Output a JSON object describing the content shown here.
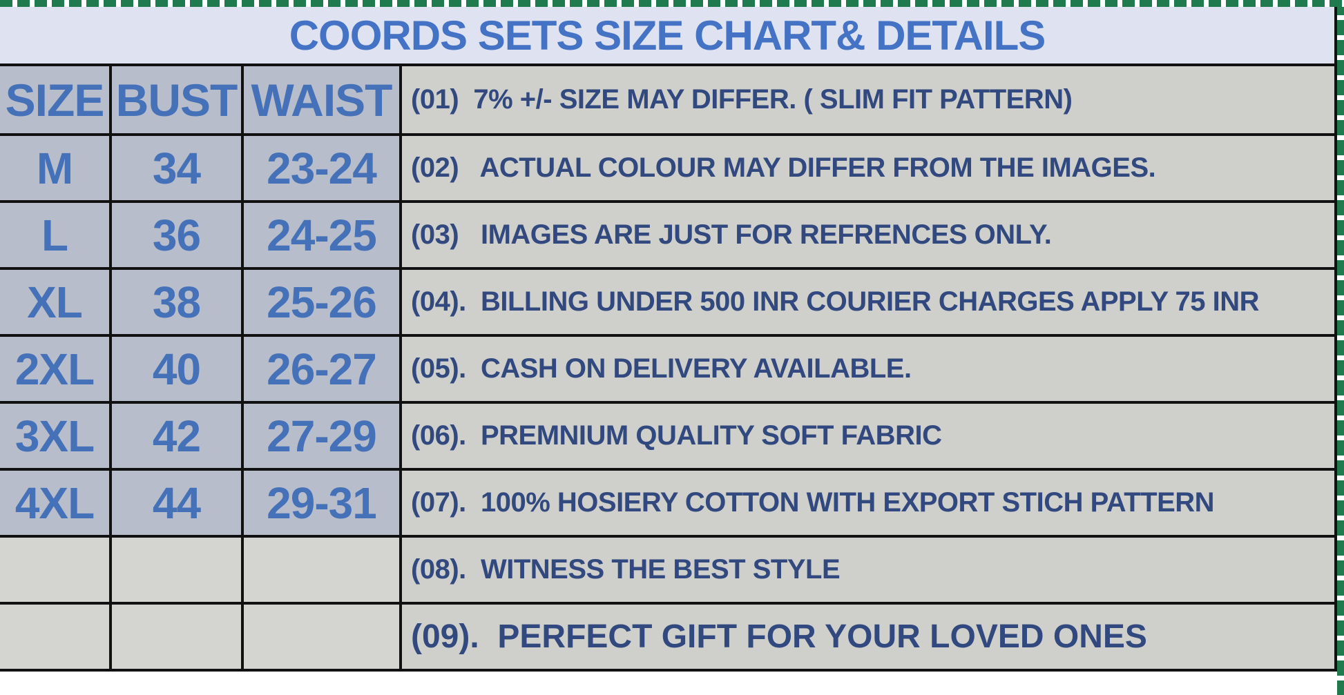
{
  "title": "COORDS SETS SIZE CHART& DETAILS",
  "table": {
    "header": {
      "size": "SIZE",
      "bust": "BUST",
      "waist": "WAIST",
      "note": "(01)  7% +/- SIZE MAY DIFFER. ( SLIM FIT PATTERN)"
    },
    "rows": [
      {
        "size": "M",
        "bust": "34",
        "waist": "23-24",
        "note": "(02)   ACTUAL COLOUR MAY DIFFER FROM THE IMAGES."
      },
      {
        "size": "L",
        "bust": "36",
        "waist": "24-25",
        "note": "(03)   IMAGES ARE JUST FOR REFRENCES ONLY."
      },
      {
        "size": "XL",
        "bust": "38",
        "waist": "25-26",
        "note": "(04).  BILLING UNDER 500 INR COURIER CHARGES APPLY 75 INR"
      },
      {
        "size": "2XL",
        "bust": "40",
        "waist": "26-27",
        "note": "(05).  CASH ON DELIVERY AVAILABLE."
      },
      {
        "size": "3XL",
        "bust": "42",
        "waist": "27-29",
        "note": "(06).  PREMNIUM QUALITY SOFT FABRIC"
      },
      {
        "size": "4XL",
        "bust": "44",
        "waist": "29-31",
        "note": "(07).  100% HOSIERY COTTON WITH EXPORT STICH PATTERN"
      },
      {
        "size": "",
        "bust": "",
        "waist": "",
        "note": "(08).  WITNESS THE BEST STYLE"
      },
      {
        "size": "",
        "bust": "",
        "waist": "",
        "note": "(09).  PERFECT GIFT FOR YOUR LOVED ONES"
      }
    ]
  },
  "colors": {
    "marquee_green": "#1f7a4d",
    "title_bg": "#dfe3f1",
    "title_text": "#4472c4",
    "size_cell_bg": "#b8bdcb",
    "note_cell_bg": "#cfcfcb",
    "empty_cell_bg": "#d4d4d1",
    "size_text": "#4571b8",
    "note_text": "#31497e",
    "border": "#111111"
  }
}
